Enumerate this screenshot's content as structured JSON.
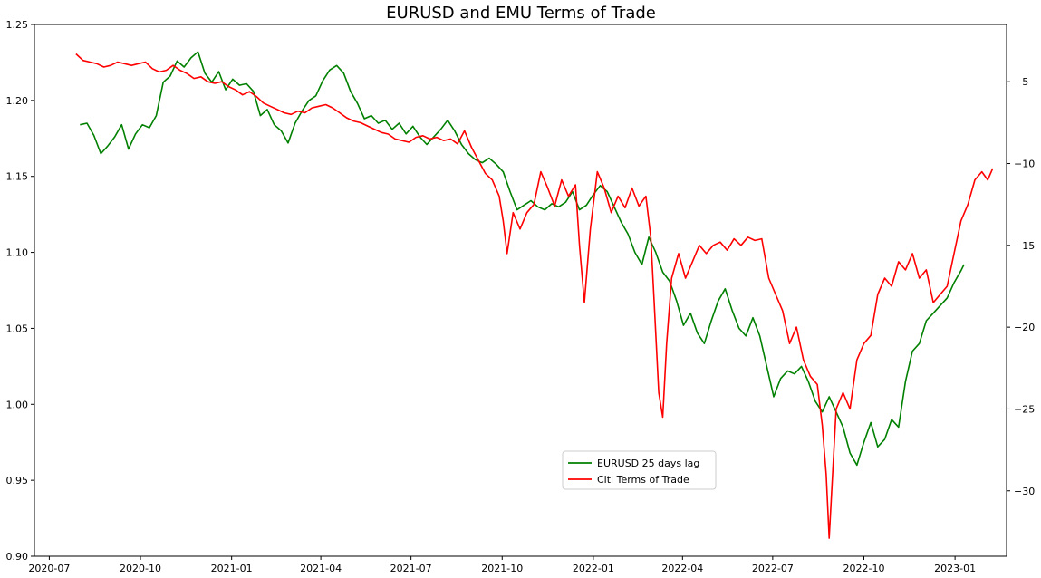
{
  "chart_data": {
    "type": "line",
    "title": "EURUSD and EMU Terms of Trade",
    "xlabel": "",
    "ylabel": "",
    "ylabel_right": "",
    "x_ticks": [
      "2020-07",
      "2020-10",
      "2021-01",
      "2021-04",
      "2021-07",
      "2021-10",
      "2022-01",
      "2022-04",
      "2022-07",
      "2022-10",
      "2023-01"
    ],
    "y_left_ticks": [
      "0.90",
      "0.95",
      "1.00",
      "1.05",
      "1.10",
      "1.15",
      "1.20",
      "1.25"
    ],
    "y_right_ticks": [
      "−30",
      "−25",
      "−20",
      "−15",
      "−10",
      "−5"
    ],
    "ylim_left": [
      0.9,
      1.25
    ],
    "ylim_right": [
      -34.0,
      -1.5
    ],
    "xlim": [
      "2020-06-16",
      "2023-02-22"
    ],
    "grid": false,
    "legend_position": "lower center",
    "series": [
      {
        "name": "EURUSD 25 days lag",
        "axis": "left",
        "color": "#008000",
        "points": [
          [
            "2020-08-01",
            1.184
          ],
          [
            "2020-08-08",
            1.185
          ],
          [
            "2020-08-15",
            1.177
          ],
          [
            "2020-08-22",
            1.165
          ],
          [
            "2020-08-29",
            1.17
          ],
          [
            "2020-09-05",
            1.176
          ],
          [
            "2020-09-12",
            1.184
          ],
          [
            "2020-09-19",
            1.168
          ],
          [
            "2020-09-26",
            1.178
          ],
          [
            "2020-10-03",
            1.184
          ],
          [
            "2020-10-10",
            1.182
          ],
          [
            "2020-10-17",
            1.19
          ],
          [
            "2020-10-24",
            1.212
          ],
          [
            "2020-10-31",
            1.216
          ],
          [
            "2020-11-07",
            1.226
          ],
          [
            "2020-11-14",
            1.222
          ],
          [
            "2020-11-21",
            1.228
          ],
          [
            "2020-11-28",
            1.232
          ],
          [
            "2020-12-05",
            1.218
          ],
          [
            "2020-12-12",
            1.212
          ],
          [
            "2020-12-19",
            1.219
          ],
          [
            "2020-12-26",
            1.207
          ],
          [
            "2021-01-02",
            1.214
          ],
          [
            "2021-01-09",
            1.21
          ],
          [
            "2021-01-16",
            1.211
          ],
          [
            "2021-01-23",
            1.206
          ],
          [
            "2021-01-30",
            1.19
          ],
          [
            "2021-02-06",
            1.194
          ],
          [
            "2021-02-13",
            1.184
          ],
          [
            "2021-02-20",
            1.18
          ],
          [
            "2021-02-27",
            1.172
          ],
          [
            "2021-03-06",
            1.185
          ],
          [
            "2021-03-13",
            1.193
          ],
          [
            "2021-03-20",
            1.2
          ],
          [
            "2021-03-27",
            1.203
          ],
          [
            "2021-04-03",
            1.213
          ],
          [
            "2021-04-10",
            1.22
          ],
          [
            "2021-04-17",
            1.223
          ],
          [
            "2021-04-24",
            1.218
          ],
          [
            "2021-05-01",
            1.206
          ],
          [
            "2021-05-08",
            1.198
          ],
          [
            "2021-05-15",
            1.188
          ],
          [
            "2021-05-22",
            1.19
          ],
          [
            "2021-05-29",
            1.185
          ],
          [
            "2021-06-05",
            1.187
          ],
          [
            "2021-06-12",
            1.181
          ],
          [
            "2021-06-19",
            1.185
          ],
          [
            "2021-06-26",
            1.178
          ],
          [
            "2021-07-03",
            1.183
          ],
          [
            "2021-07-10",
            1.176
          ],
          [
            "2021-07-17",
            1.171
          ],
          [
            "2021-07-24",
            1.176
          ],
          [
            "2021-07-31",
            1.181
          ],
          [
            "2021-08-07",
            1.187
          ],
          [
            "2021-08-14",
            1.18
          ],
          [
            "2021-08-21",
            1.171
          ],
          [
            "2021-08-28",
            1.165
          ],
          [
            "2021-09-04",
            1.161
          ],
          [
            "2021-09-11",
            1.159
          ],
          [
            "2021-09-18",
            1.162
          ],
          [
            "2021-09-25",
            1.158
          ],
          [
            "2021-10-02",
            1.153
          ],
          [
            "2021-10-09",
            1.14
          ],
          [
            "2021-10-16",
            1.128
          ],
          [
            "2021-10-23",
            1.131
          ],
          [
            "2021-10-30",
            1.134
          ],
          [
            "2021-11-06",
            1.13
          ],
          [
            "2021-11-13",
            1.128
          ],
          [
            "2021-11-20",
            1.132
          ],
          [
            "2021-11-27",
            1.13
          ],
          [
            "2021-12-04",
            1.133
          ],
          [
            "2021-12-11",
            1.14
          ],
          [
            "2021-12-18",
            1.128
          ],
          [
            "2021-12-25",
            1.131
          ],
          [
            "2022-01-01",
            1.138
          ],
          [
            "2022-01-08",
            1.144
          ],
          [
            "2022-01-15",
            1.14
          ],
          [
            "2022-01-22",
            1.13
          ],
          [
            "2022-01-29",
            1.12
          ],
          [
            "2022-02-05",
            1.112
          ],
          [
            "2022-02-12",
            1.1
          ],
          [
            "2022-02-19",
            1.092
          ],
          [
            "2022-02-26",
            1.11
          ],
          [
            "2022-03-05",
            1.1
          ],
          [
            "2022-03-12",
            1.087
          ],
          [
            "2022-03-19",
            1.081
          ],
          [
            "2022-03-26",
            1.068
          ],
          [
            "2022-04-02",
            1.052
          ],
          [
            "2022-04-09",
            1.06
          ],
          [
            "2022-04-16",
            1.047
          ],
          [
            "2022-04-23",
            1.04
          ],
          [
            "2022-04-30",
            1.055
          ],
          [
            "2022-05-07",
            1.068
          ],
          [
            "2022-05-14",
            1.076
          ],
          [
            "2022-05-21",
            1.062
          ],
          [
            "2022-05-28",
            1.05
          ],
          [
            "2022-06-04",
            1.045
          ],
          [
            "2022-06-11",
            1.057
          ],
          [
            "2022-06-18",
            1.045
          ],
          [
            "2022-06-25",
            1.025
          ],
          [
            "2022-07-02",
            1.005
          ],
          [
            "2022-07-09",
            1.017
          ],
          [
            "2022-07-16",
            1.022
          ],
          [
            "2022-07-23",
            1.02
          ],
          [
            "2022-07-30",
            1.025
          ],
          [
            "2022-08-06",
            1.015
          ],
          [
            "2022-08-13",
            1.002
          ],
          [
            "2022-08-20",
            0.995
          ],
          [
            "2022-08-27",
            1.005
          ],
          [
            "2022-09-03",
            0.995
          ],
          [
            "2022-09-10",
            0.985
          ],
          [
            "2022-09-17",
            0.968
          ],
          [
            "2022-09-24",
            0.96
          ],
          [
            "2022-10-01",
            0.975
          ],
          [
            "2022-10-08",
            0.988
          ],
          [
            "2022-10-15",
            0.972
          ],
          [
            "2022-10-22",
            0.977
          ],
          [
            "2022-10-29",
            0.99
          ],
          [
            "2022-11-05",
            0.985
          ],
          [
            "2022-11-12",
            1.015
          ],
          [
            "2022-11-19",
            1.035
          ],
          [
            "2022-11-26",
            1.04
          ],
          [
            "2022-12-03",
            1.055
          ],
          [
            "2022-12-10",
            1.06
          ],
          [
            "2022-12-17",
            1.065
          ],
          [
            "2022-12-24",
            1.07
          ],
          [
            "2022-12-31",
            1.08
          ],
          [
            "2023-01-07",
            1.088
          ],
          [
            "2023-01-10",
            1.092
          ]
        ]
      },
      {
        "name": "Citi Terms of Trade",
        "axis": "right",
        "color": "#ff0000",
        "points": [
          [
            "2020-07-28",
            -3.3
          ],
          [
            "2020-08-04",
            -3.7
          ],
          [
            "2020-08-11",
            -3.8
          ],
          [
            "2020-08-18",
            -3.9
          ],
          [
            "2020-08-25",
            -4.1
          ],
          [
            "2020-09-01",
            -4.0
          ],
          [
            "2020-09-08",
            -3.8
          ],
          [
            "2020-09-15",
            -3.9
          ],
          [
            "2020-09-22",
            -4.0
          ],
          [
            "2020-09-29",
            -3.9
          ],
          [
            "2020-10-06",
            -3.8
          ],
          [
            "2020-10-13",
            -4.2
          ],
          [
            "2020-10-20",
            -4.4
          ],
          [
            "2020-10-27",
            -4.3
          ],
          [
            "2020-11-03",
            -4.0
          ],
          [
            "2020-11-10",
            -4.3
          ],
          [
            "2020-11-17",
            -4.5
          ],
          [
            "2020-11-24",
            -4.8
          ],
          [
            "2020-12-01",
            -4.7
          ],
          [
            "2020-12-08",
            -5.0
          ],
          [
            "2020-12-15",
            -5.1
          ],
          [
            "2020-12-22",
            -5.0
          ],
          [
            "2020-12-29",
            -5.3
          ],
          [
            "2021-01-05",
            -5.5
          ],
          [
            "2021-01-12",
            -5.8
          ],
          [
            "2021-01-19",
            -5.6
          ],
          [
            "2021-01-26",
            -5.9
          ],
          [
            "2021-02-02",
            -6.3
          ],
          [
            "2021-02-09",
            -6.5
          ],
          [
            "2021-02-16",
            -6.7
          ],
          [
            "2021-02-23",
            -6.9
          ],
          [
            "2021-03-02",
            -7.0
          ],
          [
            "2021-03-09",
            -6.8
          ],
          [
            "2021-03-16",
            -6.9
          ],
          [
            "2021-03-23",
            -6.6
          ],
          [
            "2021-03-30",
            -6.5
          ],
          [
            "2021-04-06",
            -6.4
          ],
          [
            "2021-04-13",
            -6.6
          ],
          [
            "2021-04-20",
            -6.9
          ],
          [
            "2021-04-27",
            -7.2
          ],
          [
            "2021-05-04",
            -7.4
          ],
          [
            "2021-05-11",
            -7.5
          ],
          [
            "2021-05-18",
            -7.7
          ],
          [
            "2021-05-25",
            -7.9
          ],
          [
            "2021-06-01",
            -8.1
          ],
          [
            "2021-06-08",
            -8.2
          ],
          [
            "2021-06-15",
            -8.5
          ],
          [
            "2021-06-22",
            -8.6
          ],
          [
            "2021-06-29",
            -8.7
          ],
          [
            "2021-07-06",
            -8.4
          ],
          [
            "2021-07-13",
            -8.3
          ],
          [
            "2021-07-20",
            -8.5
          ],
          [
            "2021-07-27",
            -8.4
          ],
          [
            "2021-08-03",
            -8.6
          ],
          [
            "2021-08-10",
            -8.5
          ],
          [
            "2021-08-17",
            -8.8
          ],
          [
            "2021-08-24",
            -8.0
          ],
          [
            "2021-08-31",
            -9.0
          ],
          [
            "2021-09-07",
            -9.8
          ],
          [
            "2021-09-14",
            -10.6
          ],
          [
            "2021-09-21",
            -11.0
          ],
          [
            "2021-09-28",
            -12.0
          ],
          [
            "2021-10-02",
            -13.5
          ],
          [
            "2021-10-06",
            -15.5
          ],
          [
            "2021-10-12",
            -13.0
          ],
          [
            "2021-10-19",
            -14.0
          ],
          [
            "2021-10-26",
            -13.0
          ],
          [
            "2021-11-02",
            -12.5
          ],
          [
            "2021-11-09",
            -10.5
          ],
          [
            "2021-11-16",
            -11.5
          ],
          [
            "2021-11-23",
            -12.6
          ],
          [
            "2021-11-30",
            -11.0
          ],
          [
            "2021-12-07",
            -12.0
          ],
          [
            "2021-12-14",
            -11.3
          ],
          [
            "2021-12-18",
            -15.0
          ],
          [
            "2021-12-23",
            -18.5
          ],
          [
            "2021-12-29",
            -14.0
          ],
          [
            "2022-01-05",
            -10.5
          ],
          [
            "2022-01-12",
            -11.5
          ],
          [
            "2022-01-19",
            -13.0
          ],
          [
            "2022-01-26",
            -12.0
          ],
          [
            "2022-02-02",
            -12.7
          ],
          [
            "2022-02-09",
            -11.5
          ],
          [
            "2022-02-16",
            -12.6
          ],
          [
            "2022-02-23",
            -12.0
          ],
          [
            "2022-02-28",
            -14.5
          ],
          [
            "2022-03-03",
            -18.0
          ],
          [
            "2022-03-08",
            -24.0
          ],
          [
            "2022-03-12",
            -25.5
          ],
          [
            "2022-03-16",
            -21.0
          ],
          [
            "2022-03-21",
            -17.0
          ],
          [
            "2022-03-28",
            -15.5
          ],
          [
            "2022-04-04",
            -17.0
          ],
          [
            "2022-04-11",
            -16.0
          ],
          [
            "2022-04-18",
            -15.0
          ],
          [
            "2022-04-25",
            -15.5
          ],
          [
            "2022-05-02",
            -15.0
          ],
          [
            "2022-05-09",
            -14.8
          ],
          [
            "2022-05-16",
            -15.3
          ],
          [
            "2022-05-23",
            -14.6
          ],
          [
            "2022-05-30",
            -15.0
          ],
          [
            "2022-06-06",
            -14.5
          ],
          [
            "2022-06-13",
            -14.7
          ],
          [
            "2022-06-20",
            -14.6
          ],
          [
            "2022-06-27",
            -17.0
          ],
          [
            "2022-07-04",
            -18.0
          ],
          [
            "2022-07-11",
            -19.0
          ],
          [
            "2022-07-18",
            -21.0
          ],
          [
            "2022-07-25",
            -20.0
          ],
          [
            "2022-08-01",
            -22.0
          ],
          [
            "2022-08-08",
            -23.0
          ],
          [
            "2022-08-15",
            -23.5
          ],
          [
            "2022-08-20",
            -26.0
          ],
          [
            "2022-08-24",
            -29.0
          ],
          [
            "2022-08-27",
            -32.9
          ],
          [
            "2022-08-30",
            -29.5
          ],
          [
            "2022-09-03",
            -25.0
          ],
          [
            "2022-09-10",
            -24.0
          ],
          [
            "2022-09-17",
            -25.0
          ],
          [
            "2022-09-24",
            -22.0
          ],
          [
            "2022-10-01",
            -21.0
          ],
          [
            "2022-10-08",
            -20.5
          ],
          [
            "2022-10-15",
            -18.0
          ],
          [
            "2022-10-22",
            -17.0
          ],
          [
            "2022-10-29",
            -17.5
          ],
          [
            "2022-11-05",
            -16.0
          ],
          [
            "2022-11-12",
            -16.5
          ],
          [
            "2022-11-19",
            -15.5
          ],
          [
            "2022-11-26",
            -17.0
          ],
          [
            "2022-12-03",
            -16.5
          ],
          [
            "2022-12-10",
            -18.5
          ],
          [
            "2022-12-17",
            -18.0
          ],
          [
            "2022-12-24",
            -17.5
          ],
          [
            "2022-12-31",
            -15.5
          ],
          [
            "2023-01-07",
            -13.5
          ],
          [
            "2023-01-14",
            -12.5
          ],
          [
            "2023-01-21",
            -11.0
          ],
          [
            "2023-01-28",
            -10.5
          ],
          [
            "2023-02-03",
            -11.0
          ],
          [
            "2023-02-08",
            -10.3
          ]
        ]
      }
    ]
  }
}
